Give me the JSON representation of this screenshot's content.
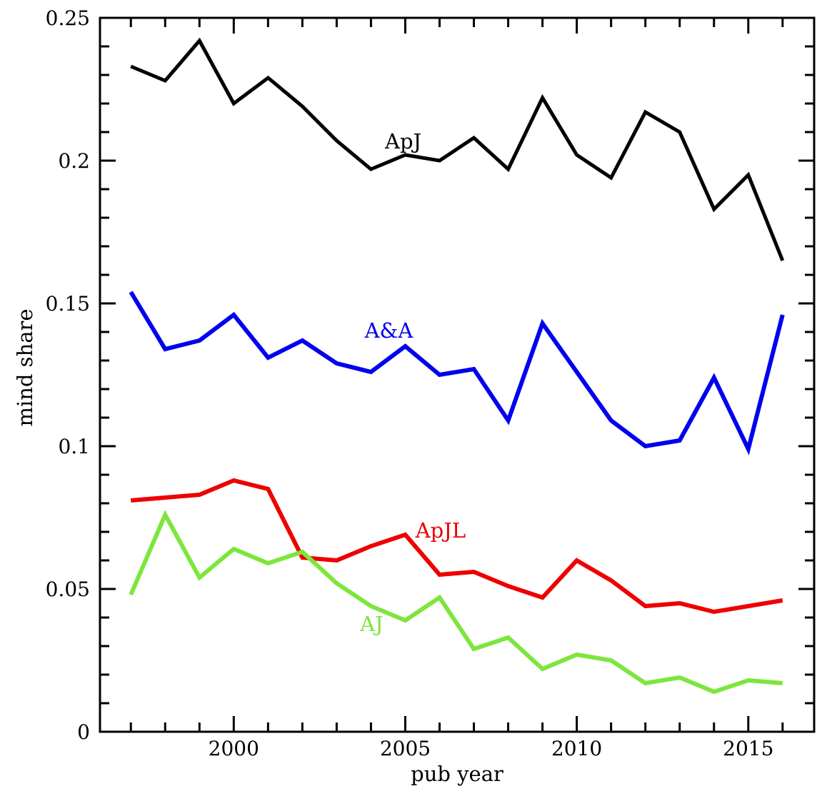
{
  "figure": {
    "background_color": "#ffffff",
    "frame_color": "#000000",
    "text_color": "#000000"
  },
  "chart_data": {
    "type": "line",
    "title": "",
    "xlabel": "pub year",
    "ylabel": "mind share",
    "x": [
      1997,
      1998,
      1999,
      2000,
      2001,
      2002,
      2003,
      2004,
      2005,
      2006,
      2007,
      2008,
      2009,
      2010,
      2011,
      2012,
      2013,
      2014,
      2015,
      2016
    ],
    "series": [
      {
        "name": "ApJ",
        "color": "#000000",
        "values": [
          0.233,
          0.228,
          0.242,
          0.22,
          0.229,
          0.219,
          0.207,
          0.197,
          0.202,
          0.2,
          0.208,
          0.197,
          0.222,
          0.202,
          0.194,
          0.217,
          0.21,
          0.183,
          0.195,
          0.165
        ],
        "label": {
          "text": "ApJ",
          "x": 2004.94,
          "y": 0.2068
        }
      },
      {
        "name": "A&A",
        "color": "#0000ee",
        "values": [
          0.154,
          0.134,
          0.137,
          0.146,
          0.131,
          0.137,
          0.129,
          0.126,
          0.135,
          0.125,
          0.127,
          0.109,
          0.143,
          0.126,
          0.109,
          0.1,
          0.102,
          0.124,
          0.099,
          0.146
        ],
        "label": {
          "text": "A&A",
          "x": 2004.52,
          "y": 0.1405
        }
      },
      {
        "name": "ApJL",
        "color": "#ee0000",
        "values": [
          0.081,
          0.082,
          0.083,
          0.088,
          0.085,
          0.061,
          0.06,
          0.065,
          0.069,
          0.055,
          0.056,
          0.051,
          0.047,
          0.06,
          0.053,
          0.044,
          0.045,
          0.042,
          0.044,
          0.046
        ],
        "label": {
          "text": "ApJL",
          "x": 2006.03,
          "y": 0.0705
        }
      },
      {
        "name": "AJ",
        "color": "#7de63c",
        "values": [
          0.048,
          0.076,
          0.054,
          0.064,
          0.059,
          0.063,
          0.052,
          0.044,
          0.039,
          0.047,
          0.029,
          0.033,
          0.022,
          0.027,
          0.025,
          0.017,
          0.019,
          0.014,
          0.018,
          0.017
        ],
        "label": {
          "text": "AJ",
          "x": 2004.02,
          "y": 0.0378
        }
      }
    ],
    "xlim": [
      1996.1,
      2016.92
    ],
    "ylim": [
      0,
      0.25
    ],
    "x_major_ticks": [
      2000,
      2005,
      2010,
      2015
    ],
    "x_major_tick_labels": [
      "2000",
      "2005",
      "2010",
      "2015"
    ],
    "x_minor_tick_step": 1,
    "y_major_ticks": [
      0,
      0.05,
      0.1,
      0.15,
      0.2,
      0.25
    ],
    "y_major_tick_labels": [
      "0",
      "0.05",
      "0.1",
      "0.15",
      "0.2",
      "0.25"
    ],
    "y_minor_tick_step": 0.01,
    "grid": false,
    "legend_position": "inline-labels",
    "tick_direction": "in"
  }
}
